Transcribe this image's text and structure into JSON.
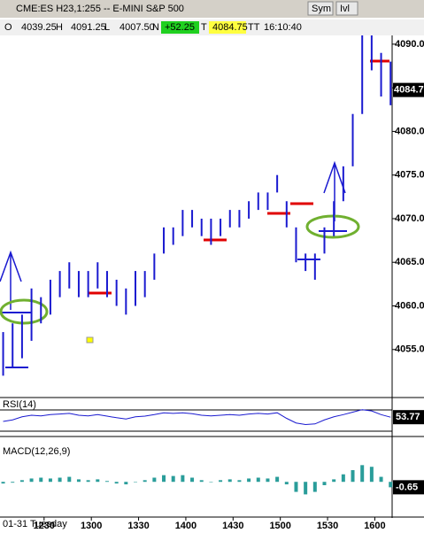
{
  "chart_data": {
    "type": "bar_range",
    "title": "CME:ES H23,1:255 -- E-MINI S&P 500",
    "buttons": [
      "Sym",
      "Ivl"
    ],
    "info": {
      "open_label": "O",
      "open": "4039.25",
      "high_label": "H",
      "high": "4091.25",
      "low_label": "L",
      "low": "4007.50",
      "net_label": "N",
      "net": "+52.25",
      "last_label": "T",
      "time_label": "TT",
      "time": "16:10:40"
    },
    "last_price": 4084.75,
    "color": "#1a1ad0",
    "x": [
      724,
      730,
      736,
      742,
      748,
      754,
      760,
      766,
      772,
      778,
      784,
      790,
      796,
      802,
      808,
      814,
      820,
      826,
      832,
      838,
      844,
      850,
      856,
      862,
      868,
      874,
      880,
      886,
      892,
      898,
      904,
      910,
      916,
      922,
      928,
      934,
      940,
      946,
      952,
      958,
      964,
      970
    ],
    "high": [
      4057,
      4058,
      4059,
      4062,
      4061,
      4063,
      4064,
      4065,
      4064,
      4064,
      4065,
      4064,
      4063,
      4062,
      4064,
      4064,
      4066,
      4069,
      4069,
      4071,
      4071,
      4070,
      4070,
      4070,
      4071,
      4071,
      4072,
      4073,
      4073,
      4075,
      4072,
      4069,
      4066,
      4066,
      4069,
      4072,
      4076,
      4082,
      4091,
      4091,
      4089,
      4088
    ],
    "low": [
      4052,
      4053,
      4054,
      4056,
      4058,
      4059,
      4061,
      4062,
      4061,
      4061,
      4062,
      4061,
      4060,
      4059,
      4060,
      4061,
      4063,
      4066,
      4067,
      4068,
      4069,
      4068,
      4067,
      4068,
      4069,
      4069,
      4070,
      4071,
      4071,
      4073,
      4069,
      4065,
      4064,
      4063,
      4066,
      4068,
      4072,
      4076,
      4082,
      4087,
      4084,
      4083
    ],
    "ylim": [
      4049.7,
      4090.8
    ],
    "yticks": [
      {
        "value": 4055,
        "label": "4055.0"
      },
      {
        "value": 4060,
        "label": "4060.0"
      },
      {
        "value": 4065,
        "label": "4065.0"
      },
      {
        "value": 4070,
        "label": "4070.0"
      },
      {
        "value": 4075,
        "label": "4075.0"
      },
      {
        "value": 4080,
        "label": "4080.0"
      },
      {
        "value": 4085,
        "label": "4085.0"
      },
      {
        "value": 4090,
        "label": "4090.0"
      }
    ],
    "xlim": [
      722,
      971
    ],
    "xticks": [
      {
        "value": 750,
        "label": "1230"
      },
      {
        "value": 780,
        "label": "1300"
      },
      {
        "value": 810,
        "label": "1330"
      },
      {
        "value": 840,
        "label": "1400"
      },
      {
        "value": 870,
        "label": "1430"
      },
      {
        "value": 900,
        "label": "1500"
      },
      {
        "value": 930,
        "label": "1530"
      },
      {
        "value": 960,
        "label": "1600"
      }
    ],
    "date_label": "01-31 Tuesday",
    "rsi": {
      "name": "RSI(14)",
      "color": "#1a1ad0",
      "ylim": [
        0,
        100
      ],
      "values": [
        40,
        45,
        55,
        60,
        58,
        62,
        64,
        66,
        60,
        58,
        62,
        57,
        52,
        48,
        55,
        57,
        62,
        68,
        66,
        68,
        65,
        60,
        58,
        60,
        62,
        60,
        64,
        66,
        64,
        68,
        50,
        35,
        30,
        32,
        45,
        55,
        62,
        70,
        78,
        74,
        62,
        53.77
      ]
    },
    "macd": {
      "name": "MACD(12,26,9)",
      "color": "#2a9d9a",
      "ylim": [
        -4,
        5
      ],
      "values": [
        -0.2,
        -0.1,
        0.2,
        0.4,
        0.5,
        0.4,
        0.5,
        0.6,
        0.3,
        0.2,
        0.3,
        0.1,
        -0.2,
        -0.3,
        0,
        0.2,
        0.5,
        0.8,
        0.7,
        0.8,
        0.5,
        0.2,
        0,
        0.2,
        0.3,
        0.2,
        0.4,
        0.5,
        0.4,
        0.6,
        -0.3,
        -1.2,
        -1.5,
        -1.2,
        -0.4,
        0.3,
        0.9,
        1.4,
        2,
        1.8,
        0.6,
        -0.65
      ]
    }
  }
}
